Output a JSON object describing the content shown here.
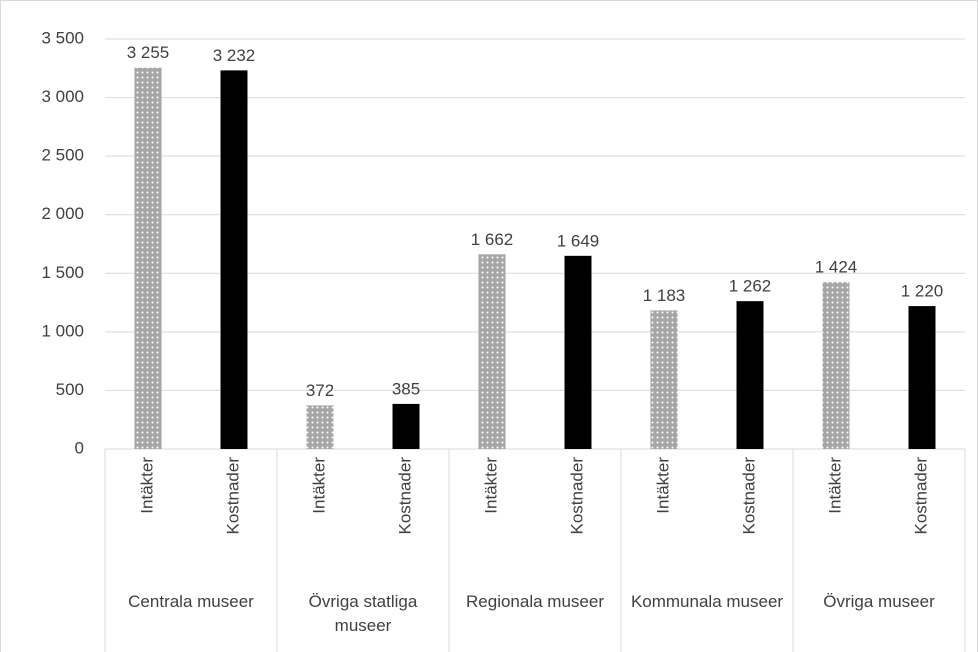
{
  "chart_data": {
    "type": "bar",
    "categories": [
      "Centrala museer",
      "Övriga statliga museer",
      "Regionala museer",
      "Kommunala museer",
      "Övriga museer"
    ],
    "series": [
      {
        "name": "Intäkter",
        "color": "#a6a6a6",
        "pattern": "dotted",
        "values": [
          3255,
          372,
          1662,
          1183,
          1424
        ],
        "value_labels": [
          "3 255",
          "372",
          "1 662",
          "1 183",
          "1 424"
        ]
      },
      {
        "name": "Kostnader",
        "color": "#000000",
        "values": [
          3232,
          385,
          1649,
          1262,
          1220
        ],
        "value_labels": [
          "3 232",
          "385",
          "1 649",
          "1 262",
          "1 220"
        ]
      }
    ],
    "ylim": [
      0,
      3500
    ],
    "yticks": [
      0,
      500,
      {
        "value": 1000,
        "label": "1 000"
      },
      {
        "value": 1500,
        "label": "1 500"
      },
      {
        "value": 2000,
        "label": "2 000"
      },
      {
        "value": 2500,
        "label": "2 500"
      },
      {
        "value": 3000,
        "label": "3 000"
      },
      {
        "value": 3500,
        "label": "3 500"
      }
    ],
    "grid": true
  }
}
